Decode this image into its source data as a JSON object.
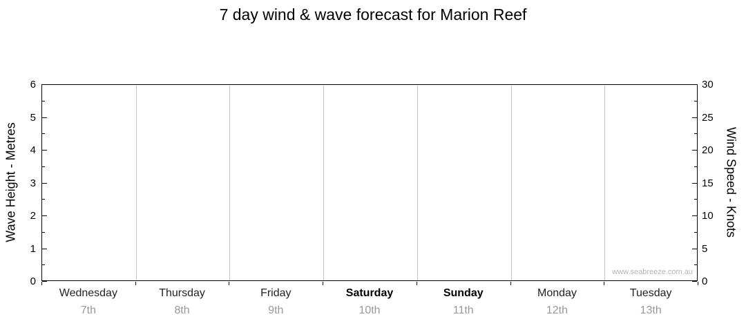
{
  "page": {
    "title": "7 day wind & wave forecast for Marion Reef",
    "watermark": "www.seabreeze.com.au"
  },
  "chart_data": {
    "type": "line",
    "title": "7 day wind & wave forecast for Marion Reef",
    "series": [],
    "categories": [
      {
        "day": "Wednesday",
        "date": "7th",
        "weekend": false
      },
      {
        "day": "Thursday",
        "date": "8th",
        "weekend": false
      },
      {
        "day": "Friday",
        "date": "9th",
        "weekend": false
      },
      {
        "day": "Saturday",
        "date": "10th",
        "weekend": true
      },
      {
        "day": "Sunday",
        "date": "11th",
        "weekend": true
      },
      {
        "day": "Monday",
        "date": "12th",
        "weekend": false
      },
      {
        "day": "Tuesday",
        "date": "13th",
        "weekend": false
      }
    ],
    "left_axis": {
      "label": "Wave Height - Metres",
      "min": 0,
      "max": 6,
      "major_step": 1,
      "minor_step": 0.5
    },
    "right_axis": {
      "label": "Wind Speed - Knots",
      "min": 0,
      "max": 30,
      "major_step": 5,
      "minor_step": 2.5
    },
    "grid": "vertical-day-boundaries",
    "legend": "none",
    "colors": {
      "axis": "#000000",
      "grid": "#c9c9c9",
      "weekday_label": "#222222",
      "weekend_label": "#000000",
      "date_label": "#999999",
      "watermark": "#b4b4b4"
    }
  }
}
